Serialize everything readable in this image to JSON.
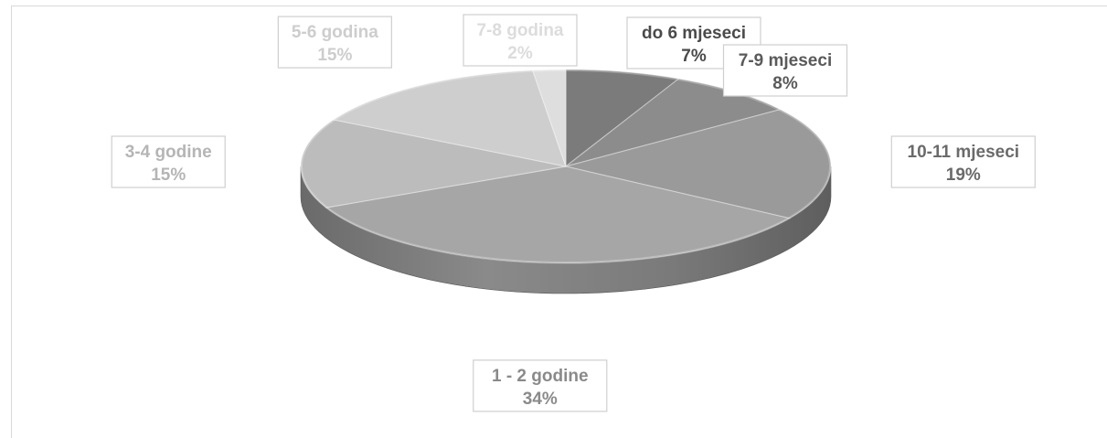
{
  "chart_data": {
    "type": "pie",
    "style": "3d",
    "categories": [
      "do 6 mjeseci",
      "7-9 mjeseci",
      "10-11 mjeseci",
      "1 - 2 godine",
      "3-4 godine",
      "5-6 godina",
      "7-8 godina"
    ],
    "values": [
      7,
      8,
      19,
      34,
      15,
      15,
      2
    ],
    "percent_labels": [
      "7%",
      "8%",
      "19%",
      "34%",
      "15%",
      "15%",
      "2%"
    ],
    "colors": [
      "#7b7b7b",
      "#8c8c8c",
      "#9a9a9a",
      "#a6a6a6",
      "#bcbcbc",
      "#cecece",
      "#dedede"
    ],
    "label_text_colors": [
      "#4a4a4a",
      "#5a5a5a",
      "#6a6a6a",
      "#8a8a8a",
      "#b5b5b5",
      "#cdcdcd",
      "#dcdcdc"
    ],
    "title": "",
    "legend": "none",
    "data_labels": "category-name-and-percent"
  }
}
